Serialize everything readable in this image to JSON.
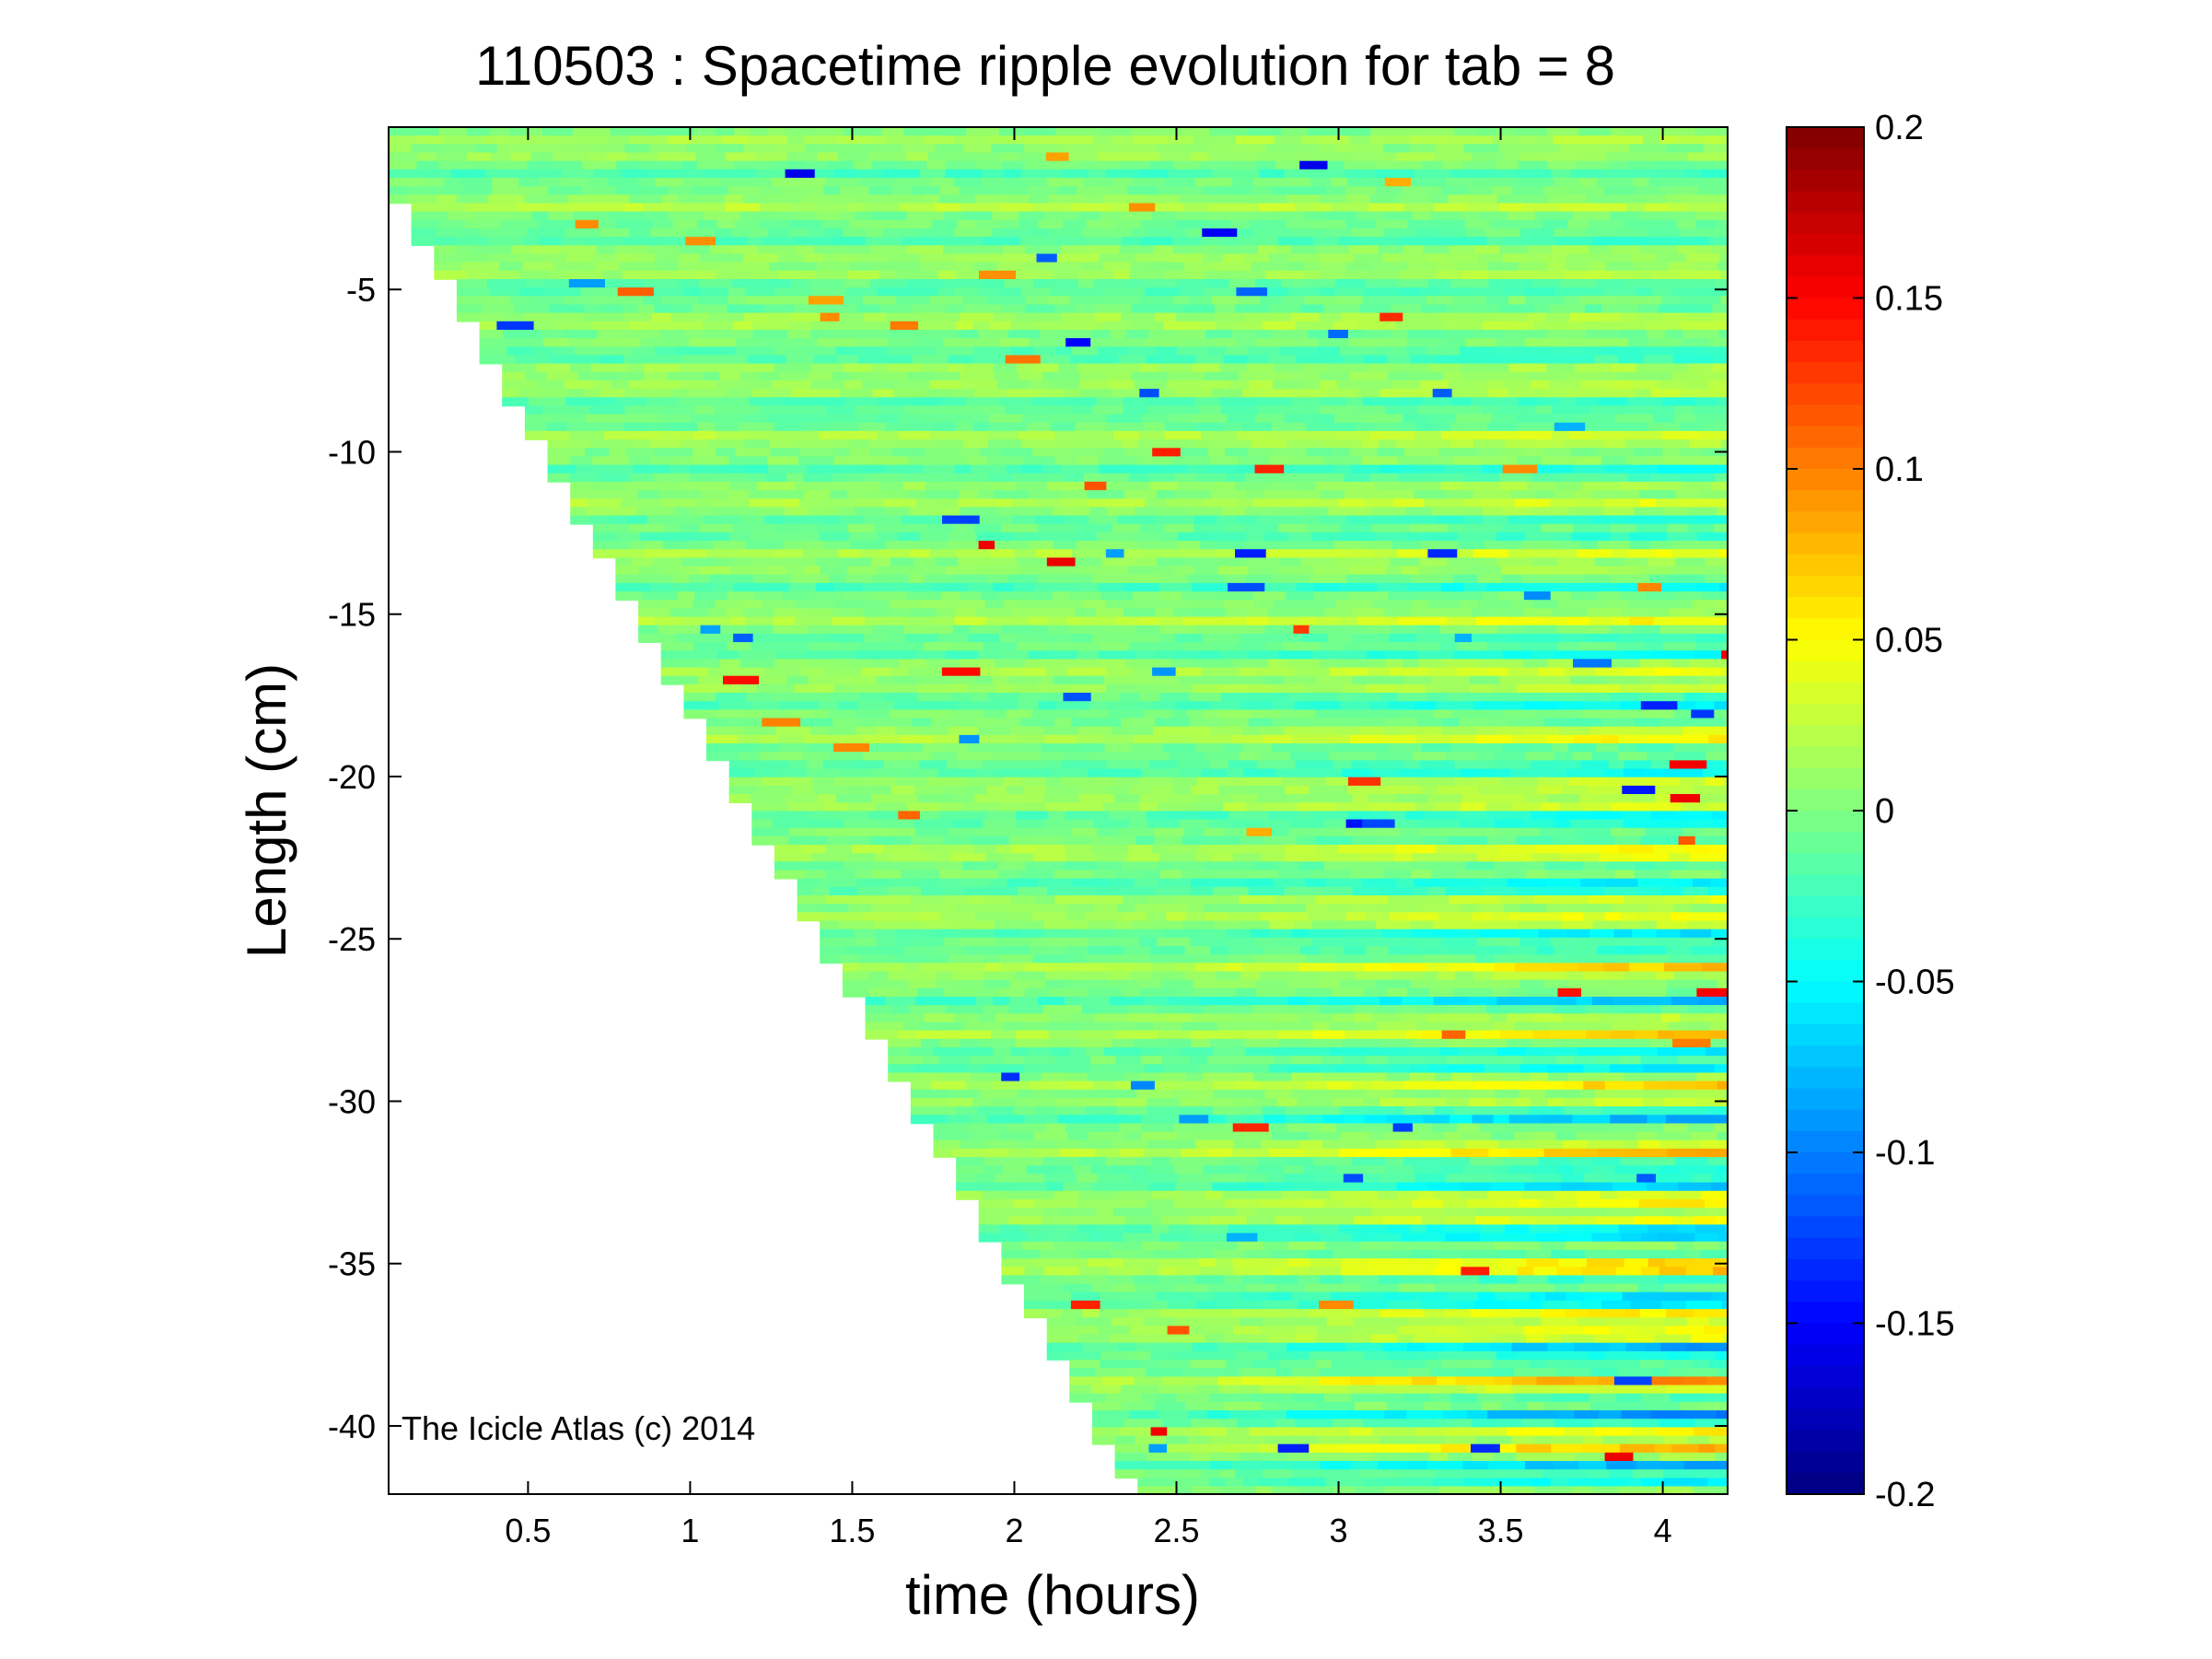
{
  "chart_data": {
    "type": "heatmap",
    "title": "110503 : Spacetime ripple evolution for tab = 8",
    "xlabel": "time (hours)",
    "ylabel": "Length (cm)",
    "xlim": [
      0.07,
      4.2
    ],
    "ylim": [
      -42.1,
      0.0
    ],
    "xticks": [
      0.5,
      1,
      1.5,
      2,
      2.5,
      3,
      3.5,
      4
    ],
    "xtick_labels": [
      "0.5",
      "1",
      "1.5",
      "2",
      "2.5",
      "3",
      "3.5",
      "4"
    ],
    "yticks": [
      -5,
      -10,
      -15,
      -20,
      -25,
      -30,
      -35,
      -40
    ],
    "ytick_labels": [
      "-5",
      "-10",
      "-15",
      "-20",
      "-25",
      "-30",
      "-35",
      "-40"
    ],
    "colorbar": {
      "range": [
        -0.2,
        0.2
      ],
      "ticks": [
        0.2,
        0.15,
        0.1,
        0.05,
        0,
        -0.05,
        -0.1,
        -0.15,
        -0.2
      ],
      "tick_labels": [
        "0.2",
        "0.15",
        "0.1",
        "0.05",
        "0",
        "-0.05",
        "-0.1",
        "-0.15",
        "-0.2"
      ],
      "colormap": "jet",
      "levels": 64
    },
    "growth_front": [
      [
        0.07,
        -1.7
      ],
      [
        2.37,
        -42.1
      ]
    ],
    "annotation": "The Icicle Atlas (c) 2014",
    "grid": false
  }
}
